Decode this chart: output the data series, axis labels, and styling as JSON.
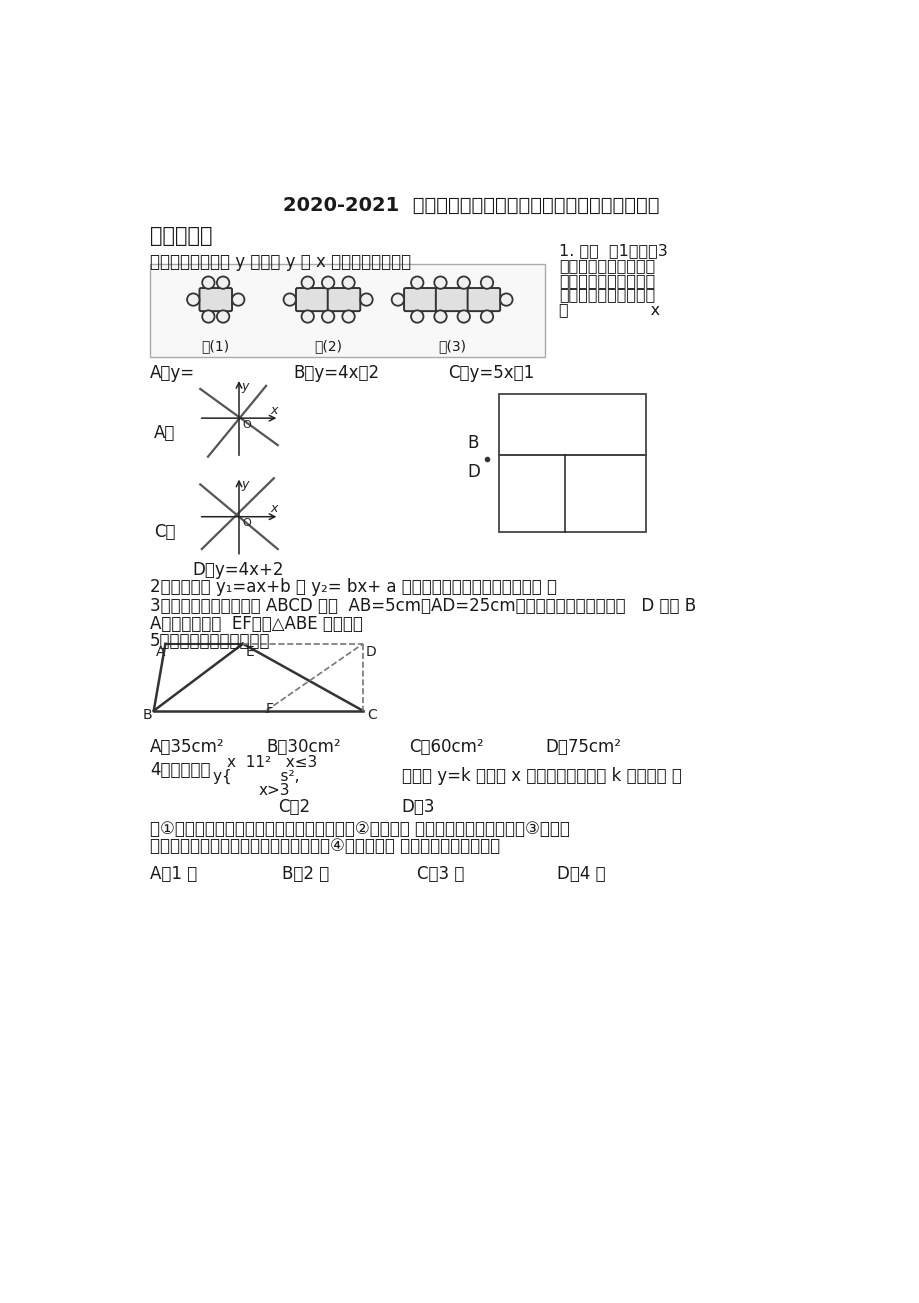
{
  "title": "2020-2021  重庆巴蜀中学八年级数学下期中一模试题含答案",
  "section1": "一、选择题",
  "bg_color": "#ffffff",
  "text_color": "#000000",
  "q1_right_line1": "1. 按图  （1）－（3",
  "q1_right_line2": "）的方式摆放餐桌和椅",
  "q1_right_line3": "子，照这样的方式继续",
  "q1_right_line4": "摆放，如果摆放的餐桌",
  "q1_right_line5": "为                x",
  "q1_left_text": "张，摆放的椅子为 y 把，则 y 与 x 之间的关系式为（",
  "q1_ans_A": "A．y=",
  "q1_ans_B": "B．y=4x－2",
  "q1_ans_C": "C．y=5x－1",
  "fig_labels": [
    "图(1)",
    "图(2)",
    "图(3)"
  ],
  "q2_text": "2．一次函数 y₁=ax+b 与 y₂= bx+ a 在同一坐标系中的图像可能是（ ）",
  "q2_ans_D": "D．y=4x+2",
  "q3_text": "3．已知，如图，长方形 ABCD 中，  AB=5cm，AD=25cm，将此长方形折叠，使点   D 与点 B",
  "q3_text2": "A重合，折痕为  EF，则△ABE 的面积为",
  "q5_header": "5．下列说法正确的有几个",
  "q3_ans_A": "A．35cm²",
  "q3_ans_B": "B．30cm²",
  "q3_ans_C": "C．60cm²",
  "q3_ans_D": "D．75cm²",
  "q4_text": "4．已知函数",
  "q4_text2": "，则使 y=k 成立的 x 值恰好有三个，则 k 的值为（ ）",
  "q4_ans_C": "C．2",
  "q4_ans_D": "D．3",
  "q5_line1": "）①对角线互相平分的四边形是平行四边形；②对角线互 相垂直的四边形是菱形；③对角线",
  "q5_line2": "互相垂直且相等的平行四边形是正方形；④对角线相等 的平行四边形是矩形。",
  "q5_ans_A": "A．1 个",
  "q5_ans_B": "B．2 个",
  "q5_ans_C": "C．3 个",
  "q5_ans_D": "D．4 个"
}
